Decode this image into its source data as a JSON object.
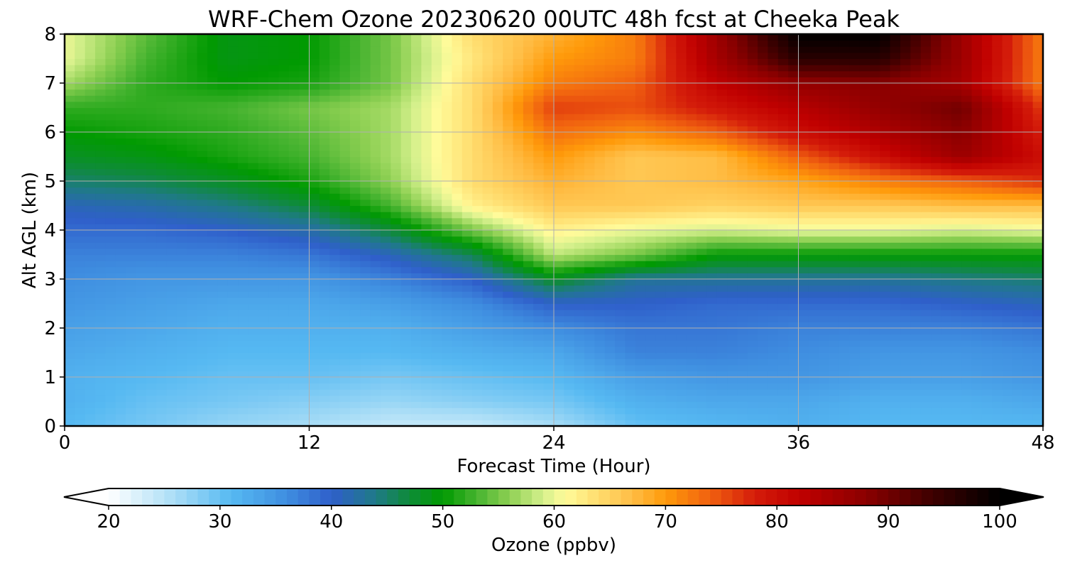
{
  "chart_data": {
    "type": "heatmap",
    "title": "WRF-Chem Ozone  20230620 00UTC 48h fcst at Cheeka Peak",
    "xlabel": "Forecast Time (Hour)",
    "ylabel": "Alt AGL (km)",
    "xlim": [
      0,
      48
    ],
    "ylim": [
      0,
      8
    ],
    "x_ticks": [
      "0",
      "12",
      "24",
      "36",
      "48"
    ],
    "y_ticks": [
      "0",
      "1",
      "2",
      "3",
      "4",
      "5",
      "6",
      "7",
      "8"
    ],
    "grid": true,
    "colorbar": {
      "label": "Ozone  (ppbv)",
      "range": [
        20,
        100
      ],
      "ticks": [
        "20",
        "30",
        "40",
        "50",
        "60",
        "70",
        "80",
        "90",
        "100"
      ],
      "extend": "both",
      "stops": [
        {
          "v": 20,
          "c": "#ffffff"
        },
        {
          "v": 26,
          "c": "#a9ddf6"
        },
        {
          "v": 31,
          "c": "#56b9f2"
        },
        {
          "v": 36,
          "c": "#3f8ee0"
        },
        {
          "v": 40,
          "c": "#2f5fca"
        },
        {
          "v": 44,
          "c": "#1f7a86"
        },
        {
          "v": 47,
          "c": "#0e8b38"
        },
        {
          "v": 50,
          "c": "#019a01"
        },
        {
          "v": 53,
          "c": "#45b32f"
        },
        {
          "v": 56,
          "c": "#8ed053"
        },
        {
          "v": 59,
          "c": "#d5f08c"
        },
        {
          "v": 61,
          "c": "#fffb9a"
        },
        {
          "v": 64,
          "c": "#ffdc6e"
        },
        {
          "v": 67,
          "c": "#ffbd45"
        },
        {
          "v": 70,
          "c": "#ff9a0a"
        },
        {
          "v": 74,
          "c": "#f06010"
        },
        {
          "v": 78,
          "c": "#d41c0a"
        },
        {
          "v": 82,
          "c": "#c00000"
        },
        {
          "v": 88,
          "c": "#8a0000"
        },
        {
          "v": 94,
          "c": "#3d0000"
        },
        {
          "v": 100,
          "c": "#000000"
        }
      ]
    },
    "times": [
      0,
      4,
      8,
      12,
      16,
      20,
      24,
      28,
      32,
      36,
      40,
      44,
      48
    ],
    "altitudes": [
      0,
      0.5,
      1,
      1.5,
      2,
      2.5,
      3,
      3.5,
      4,
      4.5,
      5,
      5.5,
      6,
      6.5,
      7,
      7.5,
      8
    ],
    "values": [
      [
        31,
        29,
        27,
        26,
        24,
        24,
        26,
        30,
        31,
        32,
        31,
        31,
        31
      ],
      [
        32,
        30,
        29,
        28,
        27,
        28,
        29,
        32,
        33,
        33,
        32,
        32,
        33
      ],
      [
        32,
        31,
        30,
        30,
        29,
        30,
        31,
        34,
        35,
        35,
        34,
        34,
        35
      ],
      [
        33,
        32,
        31,
        31,
        31,
        32,
        33,
        37,
        37,
        36,
        35,
        35,
        36
      ],
      [
        34,
        33,
        32,
        32,
        32,
        34,
        36,
        38,
        38,
        37,
        37,
        37,
        38
      ],
      [
        35,
        34,
        33,
        33,
        34,
        36,
        40,
        40,
        39,
        39,
        39,
        40,
        41
      ],
      [
        36,
        35,
        35,
        35,
        37,
        40,
        48,
        43,
        43,
        43,
        43,
        44,
        45
      ],
      [
        37,
        37,
        37,
        38,
        41,
        46,
        58,
        55,
        50,
        50,
        50,
        50,
        50
      ],
      [
        39,
        39,
        40,
        42,
        47,
        55,
        62,
        60,
        59,
        60,
        60,
        59,
        60
      ],
      [
        41,
        42,
        44,
        47,
        53,
        62,
        66,
        66,
        65,
        66,
        66,
        67,
        67
      ],
      [
        45,
        46,
        48,
        51,
        56,
        64,
        68,
        66,
        67,
        69,
        72,
        74,
        77
      ],
      [
        48,
        49,
        51,
        53,
        57,
        64,
        70,
        66,
        67,
        74,
        80,
        86,
        80
      ],
      [
        50,
        51,
        52,
        54,
        57,
        64,
        73,
        71,
        74,
        80,
        84,
        88,
        78
      ],
      [
        52,
        52,
        53,
        55,
        57,
        64,
        76,
        75,
        79,
        83,
        87,
        90,
        76
      ],
      [
        57,
        52,
        50,
        51,
        55,
        64,
        72,
        74,
        82,
        87,
        88,
        85,
        72
      ],
      [
        60,
        53,
        49,
        50,
        55,
        63,
        70,
        72,
        85,
        96,
        96,
        86,
        72
      ],
      [
        60,
        54,
        49,
        50,
        55,
        64,
        68,
        72,
        86,
        100,
        100,
        86,
        72
      ]
    ]
  }
}
